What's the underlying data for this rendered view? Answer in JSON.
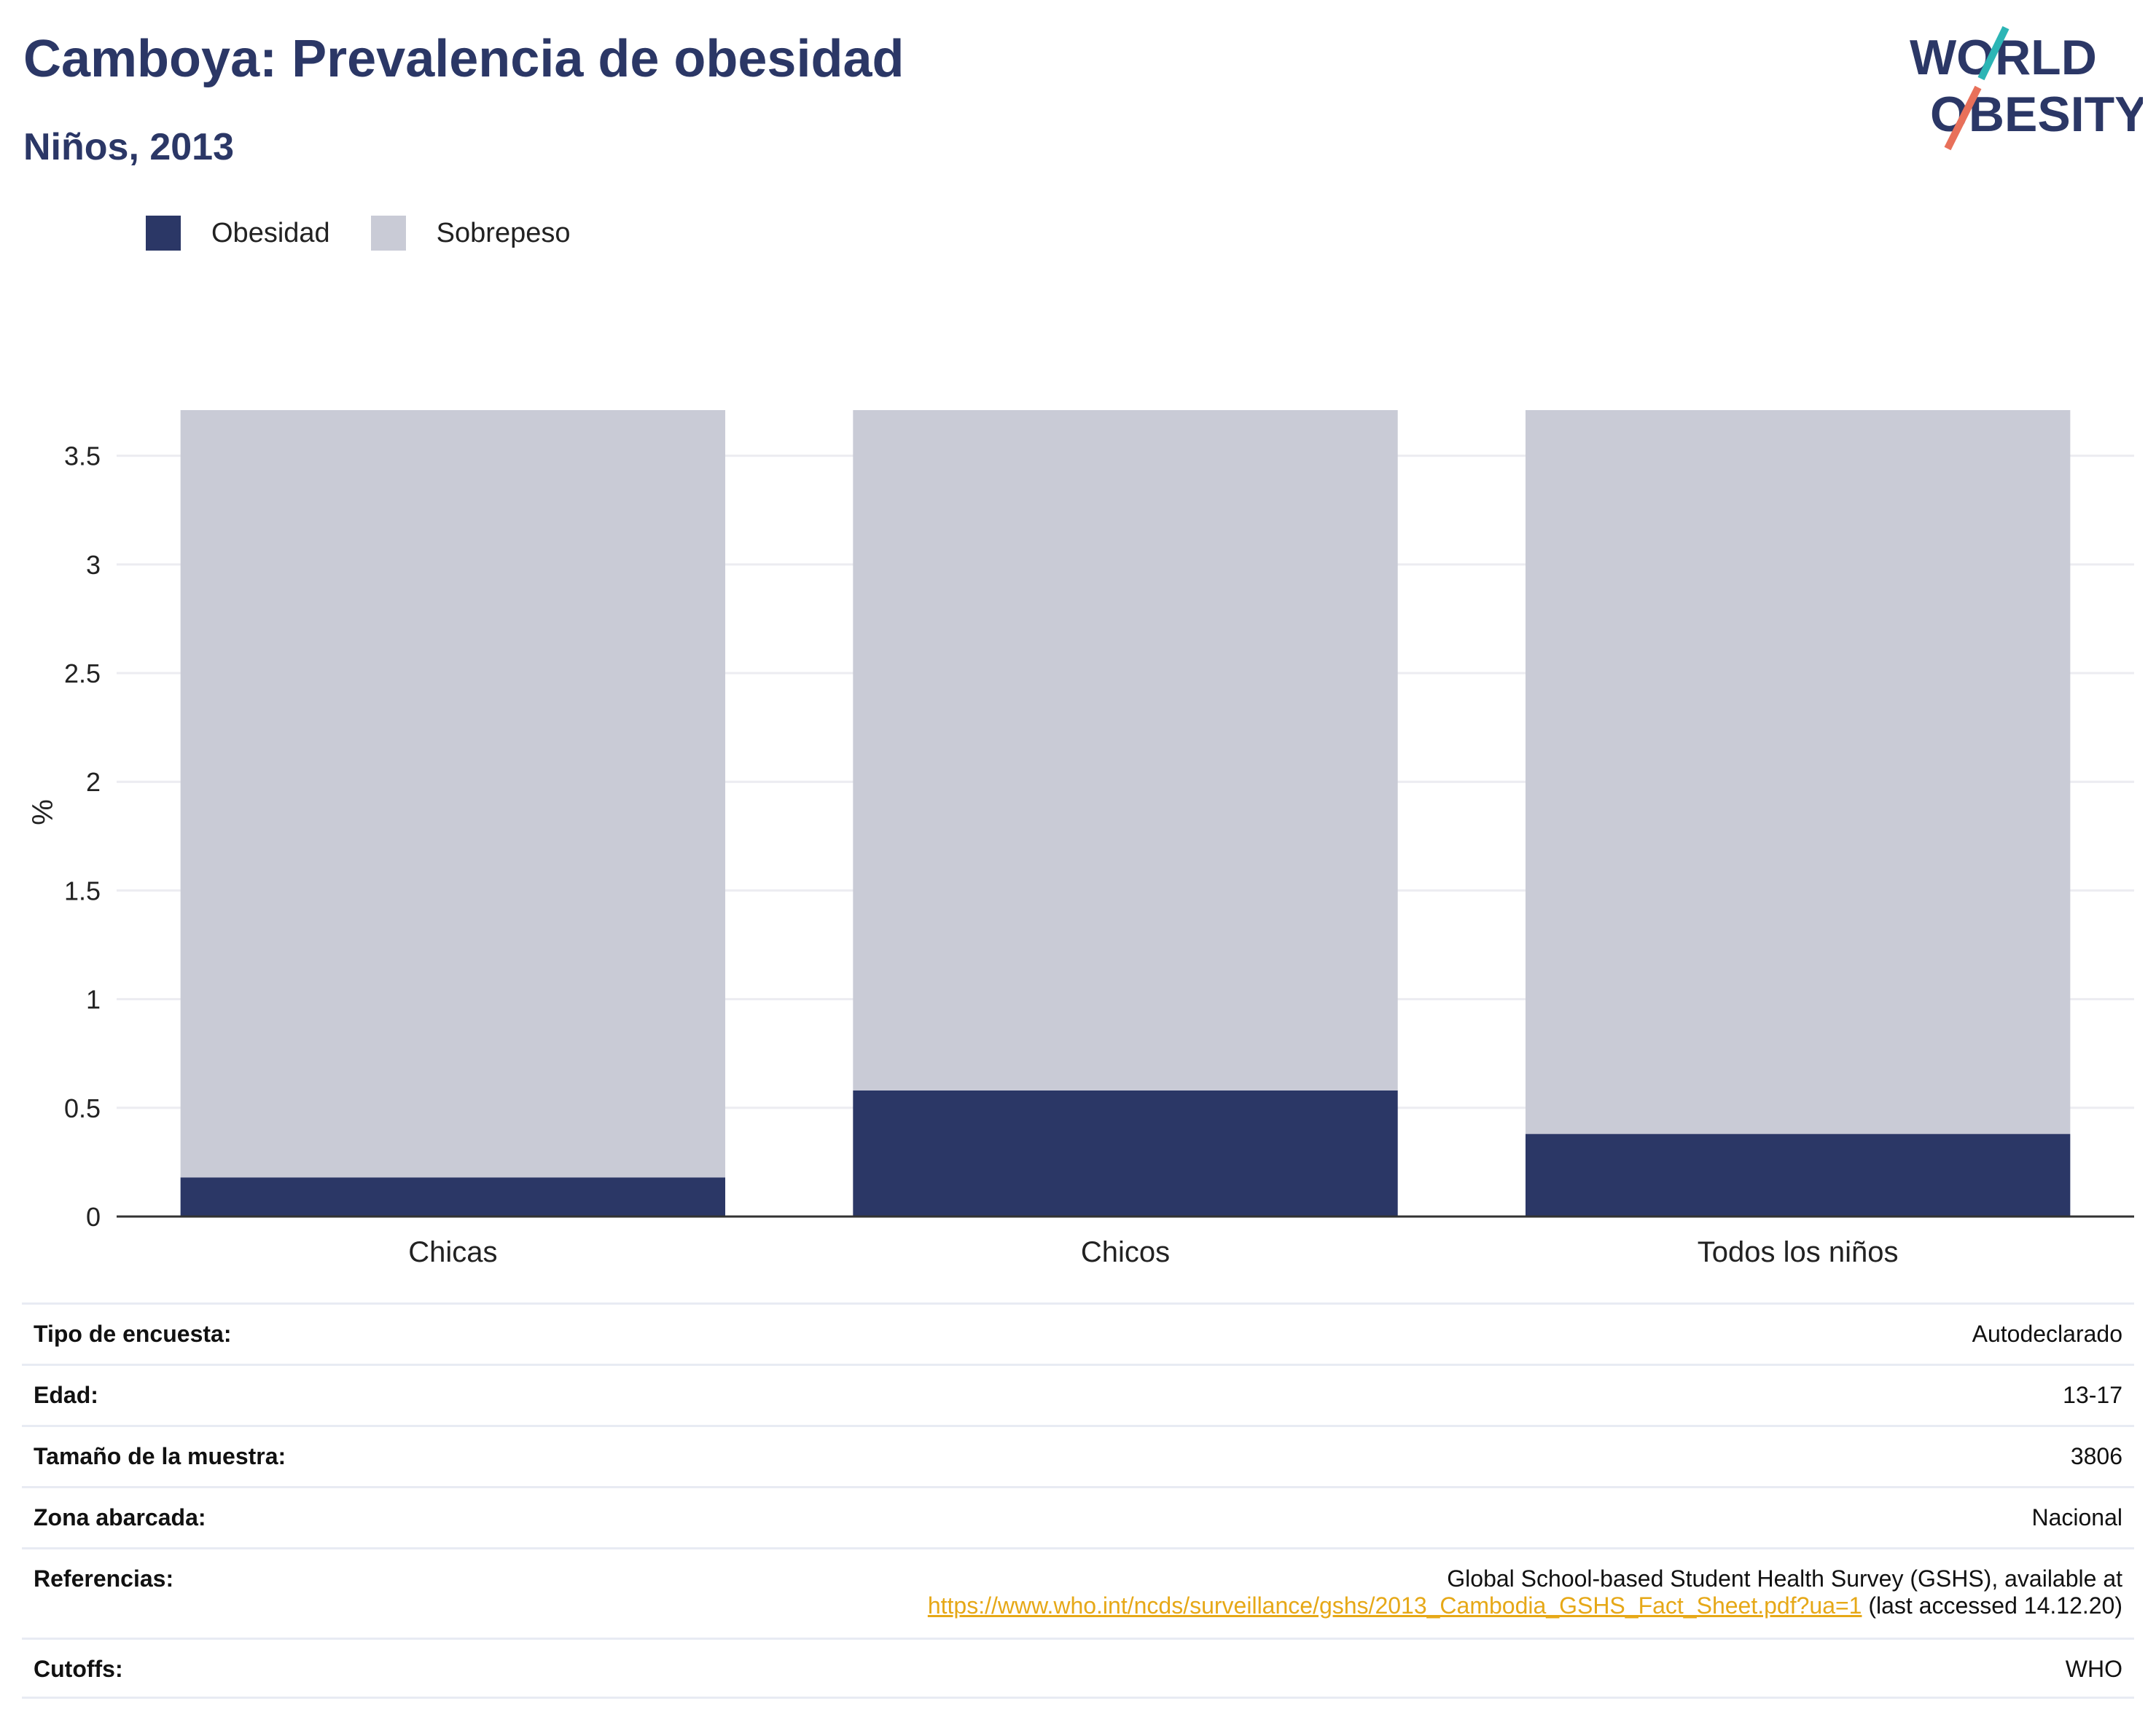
{
  "header": {
    "title": "Camboya: Prevalencia de obesidad",
    "subtitle": "Niños, 2013"
  },
  "logo": {
    "line1": "WORLD",
    "line2": "OBESITY"
  },
  "colors": {
    "obesity": "#2b3766",
    "overweight": "#c9cbd6",
    "title": "#2b3766",
    "link": "#e6a817",
    "logo_teal": "#2cb5b5",
    "logo_coral": "#e8705a"
  },
  "chart_data": {
    "type": "bar",
    "stacked": true,
    "categories": [
      "Chicas",
      "Chicos",
      "Todos los niños"
    ],
    "series": [
      {
        "name": "Obesidad",
        "values": [
          0.18,
          0.58,
          0.38
        ]
      },
      {
        "name": "Sobrepeso",
        "values": [
          3.53,
          3.13,
          3.33
        ]
      }
    ],
    "xlabel": "",
    "ylabel": "%",
    "ylim": [
      0,
      3.72
    ],
    "yticks": [
      0,
      0.5,
      1,
      1.5,
      2,
      2.5,
      3,
      3.5
    ],
    "ytick_labels": [
      "0",
      "0.5",
      "1",
      "1.5",
      "2",
      "2.5",
      "3",
      "3.5"
    ],
    "grid": true,
    "legend_position": "top-left"
  },
  "info": {
    "survey_type_label": "Tipo de encuesta:",
    "survey_type_value": "Autodeclarado",
    "age_label": "Edad:",
    "age_value": "13-17",
    "sample_label": "Tamaño de la muestra:",
    "sample_value": "3806",
    "area_label": "Zona abarcada:",
    "area_value": "Nacional",
    "refs_label": "Referencias:",
    "refs_line1": "Global School-based Student Health Survey (GSHS), available at",
    "refs_link": "https://www.who.int/ncds/surveillance/gshs/2013_Cambodia_GSHS_Fact_Sheet.pdf?ua=1",
    "refs_suffix": " (last accessed 14.12.20)",
    "cutoffs_label": "Cutoffs:",
    "cutoffs_value": "WHO"
  }
}
